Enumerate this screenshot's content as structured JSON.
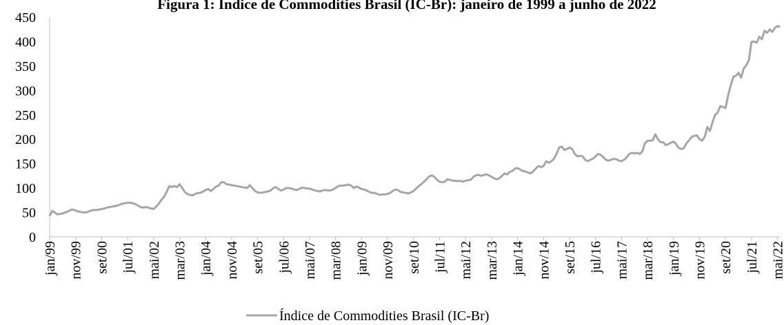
{
  "chart_data": {
    "type": "line",
    "title": "Figura 1: Índice de Commodities Brasil (IC-Br): janeiro de 1999 a junho de 2022",
    "categories": [
      "jan/99",
      null,
      null,
      null,
      null,
      null,
      null,
      null,
      null,
      null,
      "nov/99",
      null,
      null,
      null,
      null,
      null,
      null,
      null,
      null,
      null,
      "set/00",
      null,
      null,
      null,
      null,
      null,
      null,
      null,
      null,
      null,
      "jul/01",
      null,
      null,
      null,
      null,
      null,
      null,
      null,
      null,
      null,
      "mai/02",
      null,
      null,
      null,
      null,
      null,
      null,
      null,
      null,
      null,
      "mar/03",
      null,
      null,
      null,
      null,
      null,
      null,
      null,
      null,
      null,
      "jan/04",
      null,
      null,
      null,
      null,
      null,
      null,
      null,
      null,
      null,
      "nov/04",
      null,
      null,
      null,
      null,
      null,
      null,
      null,
      null,
      null,
      "set/05",
      null,
      null,
      null,
      null,
      null,
      null,
      null,
      null,
      null,
      "jul/06",
      null,
      null,
      null,
      null,
      null,
      null,
      null,
      null,
      null,
      "mai/07",
      null,
      null,
      null,
      null,
      null,
      null,
      null,
      null,
      null,
      "mar/08",
      null,
      null,
      null,
      null,
      null,
      null,
      null,
      null,
      null,
      "jan/09",
      null,
      null,
      null,
      null,
      null,
      null,
      null,
      null,
      null,
      "nov/09",
      null,
      null,
      null,
      null,
      null,
      null,
      null,
      null,
      null,
      "set/10",
      null,
      null,
      null,
      null,
      null,
      null,
      null,
      null,
      null,
      "jul/11",
      null,
      null,
      null,
      null,
      null,
      null,
      null,
      null,
      null,
      "mai/12",
      null,
      null,
      null,
      null,
      null,
      null,
      null,
      null,
      null,
      "mar/13",
      null,
      null,
      null,
      null,
      null,
      null,
      null,
      null,
      null,
      "jan/14",
      null,
      null,
      null,
      null,
      null,
      null,
      null,
      null,
      null,
      "nov/14",
      null,
      null,
      null,
      null,
      null,
      null,
      null,
      null,
      null,
      "set/15",
      null,
      null,
      null,
      null,
      null,
      null,
      null,
      null,
      null,
      "jul/16",
      null,
      null,
      null,
      null,
      null,
      null,
      null,
      null,
      null,
      "mai/17",
      null,
      null,
      null,
      null,
      null,
      null,
      null,
      null,
      null,
      "mar/18",
      null,
      null,
      null,
      null,
      null,
      null,
      null,
      null,
      null,
      "jan/19",
      null,
      null,
      null,
      null,
      null,
      null,
      null,
      null,
      null,
      "nov/19",
      null,
      null,
      null,
      null,
      null,
      null,
      null,
      null,
      null,
      "set/20",
      null,
      null,
      null,
      null,
      null,
      null,
      null,
      null,
      null,
      "jul/21",
      null,
      null,
      null,
      null,
      null,
      null,
      null,
      null,
      null,
      "mai/22",
      null
    ],
    "series": [
      {
        "name": "Índice de Commodities Brasil (IC-Br)",
        "color": "#a6a6a6",
        "values": [
          43,
          53,
          50,
          46,
          47,
          48,
          50,
          52,
          55,
          56,
          54,
          52,
          51,
          50,
          50,
          52,
          54,
          55,
          55,
          56,
          57,
          58,
          60,
          61,
          62,
          63,
          64,
          66,
          68,
          69,
          70,
          70,
          69,
          67,
          64,
          61,
          60,
          61,
          60,
          58,
          57,
          62,
          68,
          76,
          82,
          92,
          104,
          102,
          104,
          102,
          108,
          100,
          92,
          88,
          86,
          85,
          88,
          90,
          90,
          93,
          96,
          98,
          94,
          98,
          103,
          105,
          112,
          112,
          108,
          107,
          106,
          105,
          104,
          103,
          102,
          101,
          100,
          106,
          100,
          94,
          91,
          90,
          91,
          92,
          93,
          95,
          100,
          102,
          98,
          95,
          97,
          100,
          100,
          99,
          97,
          96,
          98,
          101,
          100,
          99,
          99,
          97,
          95,
          94,
          93,
          95,
          96,
          95,
          95,
          97,
          100,
          104,
          105,
          105,
          106,
          107,
          105,
          100,
          103,
          101,
          98,
          97,
          95,
          92,
          90,
          90,
          88,
          86,
          87,
          87,
          88,
          90,
          94,
          97,
          96,
          92,
          91,
          90,
          89,
          91,
          94,
          99,
          104,
          108,
          113,
          118,
          124,
          126,
          123,
          117,
          113,
          112,
          113,
          118,
          117,
          115,
          115,
          114,
          115,
          113,
          115,
          116,
          117,
          123,
          126,
          127,
          125,
          127,
          128,
          126,
          123,
          120,
          118,
          120,
          125,
          130,
          128,
          133,
          135,
          140,
          141,
          138,
          135,
          134,
          132,
          130,
          134,
          140,
          145,
          143,
          145,
          155,
          152,
          155,
          160,
          170,
          183,
          185,
          178,
          180,
          183,
          180,
          170,
          165,
          166,
          165,
          158,
          155,
          158,
          160,
          165,
          170,
          168,
          163,
          158,
          156,
          158,
          160,
          159,
          156,
          155,
          158,
          163,
          170,
          172,
          171,
          172,
          170,
          175,
          192,
          197,
          197,
          198,
          210,
          200,
          194,
          194,
          188,
          190,
          193,
          195,
          190,
          182,
          180,
          182,
          192,
          198,
          205,
          207,
          208,
          200,
          197,
          205,
          225,
          217,
          235,
          250,
          255,
          268,
          266,
          264,
          290,
          310,
          328,
          330,
          336,
          326,
          345,
          352,
          362,
          400,
          400,
          398,
          410,
          405,
          422,
          418,
          425,
          420,
          428,
          432,
          430
        ]
      }
    ],
    "ylim": [
      0,
      450
    ],
    "yticks": [
      0,
      50,
      100,
      150,
      200,
      250,
      300,
      350,
      400,
      450
    ],
    "grid": false
  }
}
